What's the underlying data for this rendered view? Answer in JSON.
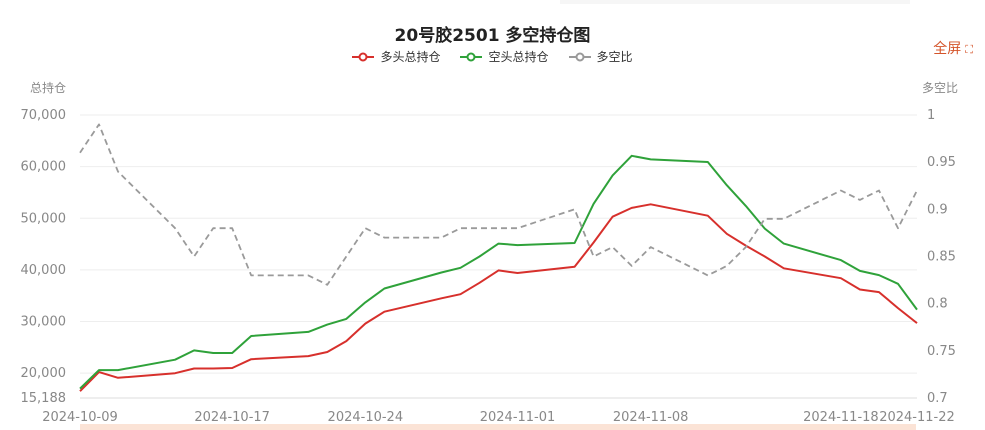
{
  "title": "20号胶2501 多空持仓图",
  "fullscreen": {
    "label": "全屏",
    "icon": "expand-icon"
  },
  "colors": {
    "long": "#d7302c",
    "short": "#2fa23a",
    "ratio": "#9a9a9a",
    "accent": "#d4542a"
  },
  "chart_data": {
    "type": "line",
    "title": "20号胶2501 多空持仓图",
    "y_left_label": "总持仓",
    "y_right_label": "多空比",
    "y_left_ticks": [
      "15,188",
      "20,000",
      "30,000",
      "40,000",
      "50,000",
      "60,000",
      "70,000"
    ],
    "y_right_ticks": [
      "0.7",
      "0.75",
      "0.8",
      "0.85",
      "0.9",
      "0.95",
      "1"
    ],
    "ylim_left": [
      15188,
      70000
    ],
    "ylim_right": [
      0.7,
      1.0
    ],
    "x_tick_labels": [
      "2024-10-09",
      "2024-10-17",
      "2024-10-24",
      "2024-11-01",
      "2024-11-08",
      "2024-11-18",
      "2024-11-22"
    ],
    "x_tick_dates": [
      "2024-10-09",
      "2024-10-17",
      "2024-10-24",
      "2024-11-01",
      "2024-11-08",
      "2024-11-18",
      "2024-11-22"
    ],
    "legend_position": "top-center",
    "dates": [
      "2024-10-09",
      "2024-10-10",
      "2024-10-11",
      "2024-10-14",
      "2024-10-15",
      "2024-10-16",
      "2024-10-17",
      "2024-10-18",
      "2024-10-21",
      "2024-10-22",
      "2024-10-23",
      "2024-10-24",
      "2024-10-25",
      "2024-10-28",
      "2024-10-29",
      "2024-10-30",
      "2024-10-31",
      "2024-11-01",
      "2024-11-04",
      "2024-11-05",
      "2024-11-06",
      "2024-11-07",
      "2024-11-08",
      "2024-11-11",
      "2024-11-12",
      "2024-11-13",
      "2024-11-14",
      "2024-11-15",
      "2024-11-18",
      "2024-11-19",
      "2024-11-20",
      "2024-11-21",
      "2024-11-22"
    ],
    "series": [
      {
        "name": "多头总持仓",
        "axis": "left",
        "style": "solid",
        "color": "#d7302c",
        "values": [
          16500,
          20200,
          19100,
          20000,
          20900,
          20900,
          21000,
          22700,
          23300,
          24100,
          26200,
          29600,
          31900,
          34500,
          35300,
          37500,
          39900,
          39400,
          40600,
          45300,
          50300,
          52000,
          52700,
          50500,
          47000,
          44700,
          42600,
          40300,
          38400,
          36200,
          35700,
          32600,
          29700
        ]
      },
      {
        "name": "空头总持仓",
        "axis": "left",
        "style": "solid",
        "color": "#2fa23a",
        "values": [
          17000,
          20600,
          20600,
          22600,
          24400,
          23900,
          23900,
          27200,
          28000,
          29400,
          30500,
          33700,
          36400,
          39500,
          40400,
          42600,
          45100,
          44800,
          45200,
          52800,
          58300,
          62100,
          61400,
          60900,
          56400,
          52400,
          48000,
          45100,
          41900,
          39800,
          39000,
          37300,
          32300
        ]
      },
      {
        "name": "多空比",
        "axis": "right",
        "style": "dashed",
        "color": "#9a9a9a",
        "values": [
          0.96,
          0.99,
          0.94,
          0.88,
          0.85,
          0.88,
          0.88,
          0.83,
          0.83,
          0.82,
          0.85,
          0.88,
          0.87,
          0.87,
          0.88,
          0.88,
          0.88,
          0.88,
          0.9,
          0.85,
          0.86,
          0.84,
          0.86,
          0.83,
          0.84,
          0.86,
          0.89,
          0.89,
          0.92,
          0.91,
          0.92,
          0.88,
          0.92
        ]
      }
    ]
  }
}
